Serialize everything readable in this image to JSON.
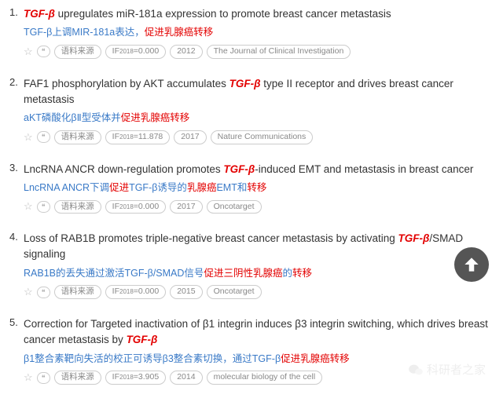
{
  "entries": [
    {
      "num": "1.",
      "title_pre": "",
      "title_hl": "TGF-β",
      "title_post": " upregulates miR-181a expression to promote breast cancer metastasis",
      "trans_pre": "TGF-β上调MIR-181a表达，",
      "trans_r": "促进乳腺癌转移",
      "trans_post": "",
      "if": "IF2018=0.000",
      "year": "2012",
      "journal": "The Journal of Clinical Investigation"
    },
    {
      "num": "2.",
      "title_pre": "FAF1 phosphorylation by AKT accumulates ",
      "title_hl": "TGF-β",
      "title_post": " type II receptor and drives breast cancer metastasis",
      "trans_pre": "aKT磷酸化βⅡ型受体并",
      "trans_r": "促进乳腺癌转移",
      "trans_post": "",
      "if": "IF2018=11.878",
      "year": "2017",
      "journal": "Nature Communications"
    },
    {
      "num": "3.",
      "title_pre": "LncRNA ANCR down-regulation promotes ",
      "title_hl": "TGF-β",
      "title_post": "-induced EMT and metastasis in breast cancer",
      "trans_pre": "LncRNA ANCR下调",
      "trans_r": "促进",
      "trans_post": "TGF-β诱导的",
      "trans_r2": "乳腺癌",
      "trans_post2": "EMT和",
      "trans_r3": "转移",
      "if": "IF2018=0.000",
      "year": "2017",
      "journal": "Oncotarget"
    },
    {
      "num": "4.",
      "title_pre": "Loss of RAB1B promotes triple-negative breast cancer metastasis by activating ",
      "title_hl": "TGF-β",
      "title_post": "/SMAD signaling",
      "trans_pre": "RAB1B的丢失通过激活TGF-β/SMAD信号",
      "trans_r": "促进三阴性",
      "trans_post": "",
      "trans_r2": "乳腺癌",
      "trans_post2": "的",
      "trans_r3": "转移",
      "if": "IF2018=0.000",
      "year": "2015",
      "journal": "Oncotarget"
    },
    {
      "num": "5.",
      "title_pre": "Correction for Targeted inactivation of β1 integrin induces β3 integrin switching, which drives breast cancer metastasis by ",
      "title_hl": "TGF-β",
      "title_post": "",
      "trans_pre": "β1整合素靶向失活的校正可诱导β3整合素切换，通过TGF-β",
      "trans_r": "促进乳腺癌转移",
      "trans_post": "",
      "if": "IF2018=3.905",
      "year": "2014",
      "journal": "molecular biology of the cell"
    }
  ],
  "labels": {
    "source": "语料来源",
    "watermark": "科研者之家"
  },
  "colors": {
    "highlight": "#e30000",
    "link": "#3a7ac7",
    "pill_border": "#cccccc",
    "pill_text": "#888888"
  }
}
